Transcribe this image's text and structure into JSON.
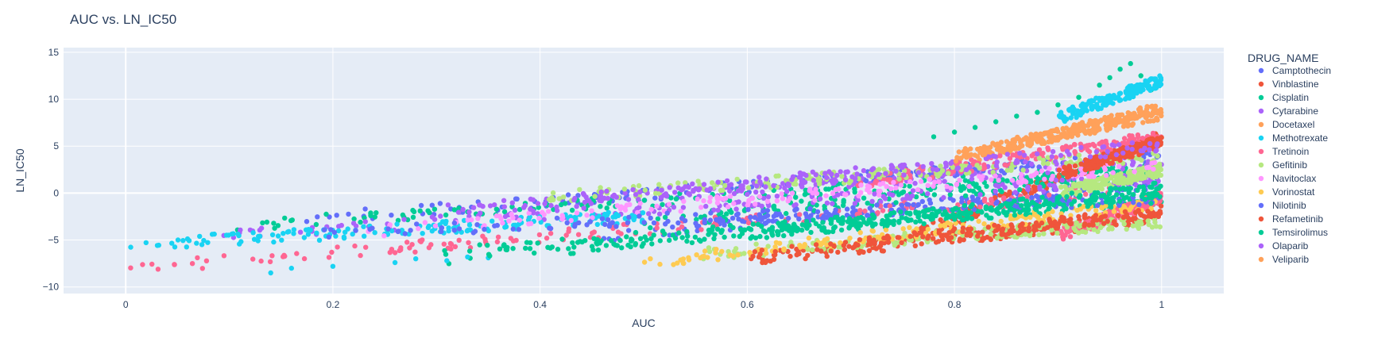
{
  "chart_data": {
    "type": "scatter",
    "title": "AUC vs. LN_IC50",
    "xlabel": "AUC",
    "ylabel": "LN_IC50",
    "xlim": [
      -0.06,
      1.06
    ],
    "ylim": [
      -10.7,
      15.5
    ],
    "x_ticks": [
      0,
      0.2,
      0.4,
      0.6,
      0.8,
      1
    ],
    "x_tick_labels": [
      "0",
      "0.2",
      "0.4",
      "0.6",
      "0.8",
      "1"
    ],
    "y_ticks": [
      -10,
      -5,
      0,
      5,
      10,
      15
    ],
    "y_tick_labels": [
      "−10",
      "−5",
      "0",
      "5",
      "10",
      "15"
    ],
    "grid": true,
    "plot_background": "#e5ecf6",
    "grid_color": "#ffffff",
    "legend_title": "DRUG_NAME",
    "legend_position": "right",
    "series": [
      {
        "name": "Camptothecin",
        "color": "#636efa",
        "bands": [
          {
            "x": [
              0.15,
              1.0
            ],
            "y": [
              -3.0,
              4.0
            ]
          },
          {
            "x": [
              0.45,
              1.0
            ],
            "y": [
              -4.8,
              1.0
            ]
          }
        ]
      },
      {
        "name": "Vinblastine",
        "color": "#EF553B",
        "bands": [
          {
            "x": [
              0.6,
              1.0
            ],
            "y": [
              -7.0,
              -2.5
            ]
          },
          {
            "x": [
              0.75,
              1.0
            ],
            "y": [
              -5.0,
              6.0
            ]
          }
        ]
      },
      {
        "name": "Cisplatin",
        "color": "#00cc96",
        "bands": [
          {
            "x": [
              0.3,
              1.0
            ],
            "y": [
              -7.0,
              -0.5
            ]
          },
          {
            "x": [
              0.1,
              1.0
            ],
            "y": [
              -3.5,
              2.5
            ]
          },
          {
            "x": [
              0.5,
              1.0
            ],
            "y": [
              -3.2,
              2.5
            ]
          }
        ],
        "extra": [
          [
            0.78,
            6.0
          ],
          [
            0.8,
            6.5
          ],
          [
            0.82,
            7.0
          ],
          [
            0.84,
            7.6
          ],
          [
            0.86,
            8.2
          ],
          [
            0.88,
            8.6
          ],
          [
            0.9,
            9.4
          ],
          [
            0.92,
            10.2
          ],
          [
            0.94,
            11.5
          ],
          [
            0.96,
            13.2
          ],
          [
            0.97,
            13.8
          ],
          [
            0.98,
            12.5
          ],
          [
            0.99,
            11.0
          ],
          [
            0.95,
            12.3
          ]
        ]
      },
      {
        "name": "Cytarabine",
        "color": "#ab63fa",
        "bands": [
          {
            "x": [
              0.05,
              1.0
            ],
            "y": [
              -4.8,
              1.5
            ]
          },
          {
            "x": [
              0.35,
              1.0
            ],
            "y": [
              -1.5,
              3.5
            ]
          }
        ]
      },
      {
        "name": "Docetaxel",
        "color": "#FFA15A",
        "bands": [
          {
            "x": [
              0.8,
              1.0
            ],
            "y": [
              3.5,
              9.0
            ]
          }
        ]
      },
      {
        "name": "Methotrexate",
        "color": "#19d3f3",
        "bands": [
          {
            "x": [
              0.0,
              0.5
            ],
            "y": [
              -5.5,
              -2.5
            ]
          },
          {
            "x": [
              0.9,
              1.0
            ],
            "y": [
              8.0,
              12.0
            ]
          }
        ],
        "extra": [
          [
            0.14,
            -8.5
          ],
          [
            0.16,
            -8.0
          ],
          [
            0.2,
            -7.8
          ],
          [
            0.26,
            -7.4
          ],
          [
            0.28,
            -7.0
          ],
          [
            0.31,
            -7.2
          ],
          [
            0.33,
            -6.8
          ],
          [
            0.35,
            -6.9
          ]
        ]
      },
      {
        "name": "Tretinoin",
        "color": "#FF6692",
        "bands": [
          {
            "x": [
              0.0,
              0.95
            ],
            "y": [
              -8.0,
              0.0
            ]
          },
          {
            "x": [
              0.7,
              1.0
            ],
            "y": [
              1.0,
              6.0
            ]
          },
          {
            "x": [
              0.9,
              1.0
            ],
            "y": [
              -4.5,
              -0.5
            ]
          }
        ]
      },
      {
        "name": "Gefitinib",
        "color": "#B6E880",
        "bands": [
          {
            "x": [
              0.55,
              1.0
            ],
            "y": [
              -6.5,
              -3.0
            ]
          },
          {
            "x": [
              0.4,
              1.0
            ],
            "y": [
              -0.5,
              4.0
            ]
          },
          {
            "x": [
              0.9,
              1.0
            ],
            "y": [
              0.0,
              2.5
            ]
          }
        ]
      },
      {
        "name": "Navitoclax",
        "color": "#FF97FF",
        "bands": [
          {
            "x": [
              0.2,
              1.0
            ],
            "y": [
              -4.5,
              3.0
            ]
          }
        ]
      },
      {
        "name": "Vorinostat",
        "color": "#FECB52",
        "bands": [
          {
            "x": [
              0.5,
              1.0
            ],
            "y": [
              -7.5,
              -1.0
            ]
          }
        ]
      },
      {
        "name": "Nilotinib",
        "color": "#636efa",
        "bands": [
          {
            "x": [
              0.15,
              1.0
            ],
            "y": [
              -4.5,
              -0.5
            ]
          }
        ]
      },
      {
        "name": "Refametinib",
        "color": "#EF553B",
        "bands": [
          {
            "x": [
              0.6,
              1.0
            ],
            "y": [
              -6.8,
              -2.0
            ]
          },
          {
            "x": [
              0.9,
              1.0
            ],
            "y": [
              2.0,
              5.5
            ]
          }
        ]
      },
      {
        "name": "Temsirolimus",
        "color": "#00cc96",
        "bands": [
          {
            "x": [
              0.3,
              1.0
            ],
            "y": [
              -6.5,
              -0.5
            ]
          },
          {
            "x": [
              0.6,
              1.0
            ],
            "y": [
              -4.5,
              0.5
            ]
          }
        ]
      },
      {
        "name": "Olaparib",
        "color": "#ab63fa",
        "bands": [
          {
            "x": [
              0.3,
              1.0
            ],
            "y": [
              -2.0,
              5.0
            ]
          }
        ]
      },
      {
        "name": "Veliparib",
        "color": "#FFA15A",
        "bands": [
          {
            "x": [
              0.8,
              1.0
            ],
            "y": [
              4.0,
              8.5
            ]
          }
        ]
      }
    ]
  }
}
